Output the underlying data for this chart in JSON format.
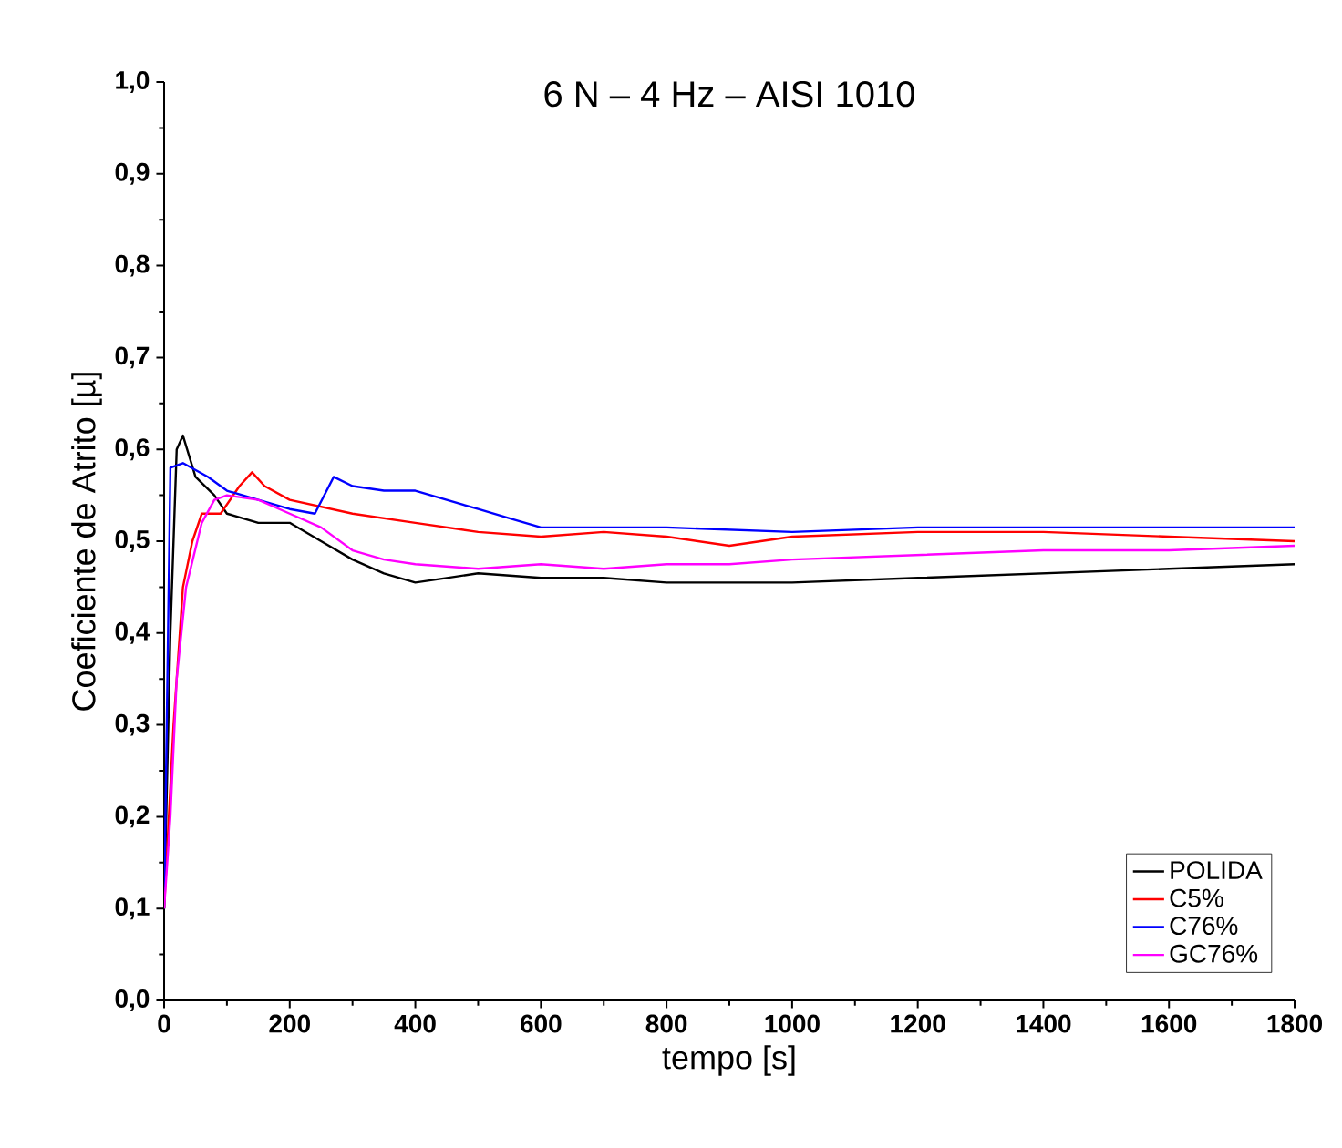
{
  "chart_data": {
    "type": "line",
    "title": "6 N – 4 Hz – AISI 1010",
    "xlabel": "tempo [s]",
    "ylabel": "Coeficiente de Atrito [µ]",
    "xlim": [
      0,
      1800
    ],
    "ylim": [
      0,
      1.0
    ],
    "xticks": [
      0,
      200,
      400,
      600,
      800,
      1000,
      1200,
      1400,
      1600,
      1800
    ],
    "yticks": [
      {
        "value": 0,
        "label": "0,0"
      },
      {
        "value": 0.1,
        "label": "0,1"
      },
      {
        "value": 0.2,
        "label": "0,2"
      },
      {
        "value": 0.3,
        "label": "0,3"
      },
      {
        "value": 0.4,
        "label": "0,4"
      },
      {
        "value": 0.5,
        "label": "0,5"
      },
      {
        "value": 0.6,
        "label": "0,6"
      },
      {
        "value": 0.7,
        "label": "0,7"
      },
      {
        "value": 0.8,
        "label": "0,8"
      },
      {
        "value": 0.9,
        "label": "0,9"
      },
      {
        "value": 1.0,
        "label": "1,0"
      }
    ],
    "grid": false,
    "legend": "bottom right",
    "marker": "none",
    "line_style": "solid",
    "series": [
      {
        "name": "POLIDA",
        "color": "#000000",
        "x": [
          0,
          10,
          20,
          30,
          50,
          80,
          100,
          150,
          200,
          250,
          300,
          350,
          400,
          450,
          500,
          600,
          700,
          800,
          900,
          1000,
          1200,
          1400,
          1600,
          1800
        ],
        "values": [
          0.1,
          0.4,
          0.6,
          0.615,
          0.57,
          0.55,
          0.53,
          0.52,
          0.52,
          0.5,
          0.48,
          0.465,
          0.455,
          0.46,
          0.465,
          0.46,
          0.46,
          0.455,
          0.455,
          0.455,
          0.46,
          0.465,
          0.47,
          0.475
        ]
      },
      {
        "name": "C5%",
        "color": "#ff0000",
        "x": [
          0,
          15,
          30,
          45,
          60,
          90,
          120,
          140,
          160,
          200,
          300,
          400,
          500,
          600,
          700,
          800,
          900,
          1000,
          1200,
          1400,
          1600,
          1800
        ],
        "values": [
          0.1,
          0.3,
          0.45,
          0.5,
          0.53,
          0.53,
          0.56,
          0.575,
          0.56,
          0.545,
          0.53,
          0.52,
          0.51,
          0.505,
          0.51,
          0.505,
          0.495,
          0.505,
          0.51,
          0.51,
          0.505,
          0.5
        ]
      },
      {
        "name": "C76%",
        "color": "#0000ff",
        "x": [
          0,
          10,
          30,
          70,
          100,
          150,
          200,
          240,
          270,
          300,
          350,
          400,
          450,
          500,
          550,
          600,
          700,
          800,
          1000,
          1200,
          1400,
          1600,
          1800
        ],
        "values": [
          0.1,
          0.58,
          0.585,
          0.57,
          0.555,
          0.545,
          0.535,
          0.53,
          0.57,
          0.56,
          0.555,
          0.555,
          0.545,
          0.535,
          0.525,
          0.515,
          0.515,
          0.515,
          0.51,
          0.515,
          0.515,
          0.515,
          0.515
        ]
      },
      {
        "name": "GC76%",
        "color": "#ff00ff",
        "x": [
          0,
          10,
          20,
          35,
          60,
          80,
          100,
          150,
          200,
          250,
          300,
          350,
          400,
          500,
          600,
          700,
          800,
          900,
          1000,
          1200,
          1400,
          1600,
          1800
        ],
        "values": [
          0.1,
          0.2,
          0.35,
          0.45,
          0.52,
          0.545,
          0.55,
          0.545,
          0.53,
          0.515,
          0.49,
          0.48,
          0.475,
          0.47,
          0.475,
          0.47,
          0.475,
          0.475,
          0.48,
          0.485,
          0.49,
          0.49,
          0.495
        ]
      }
    ]
  }
}
